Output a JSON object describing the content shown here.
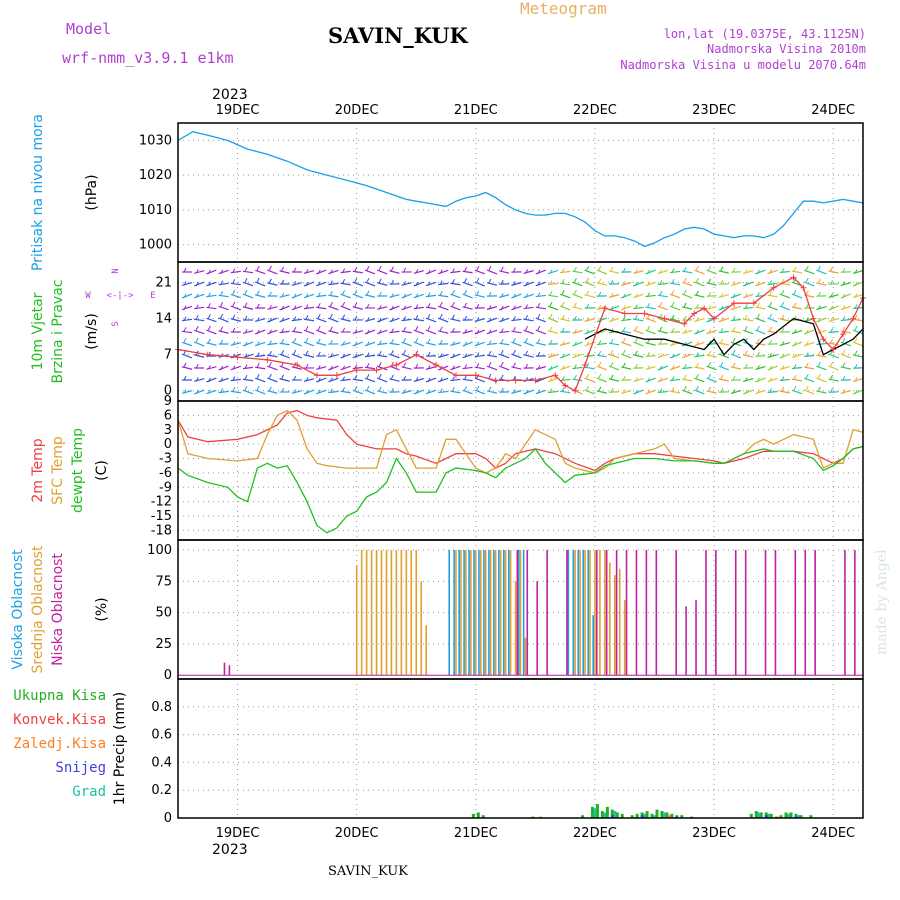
{
  "header": {
    "model_label": "Model",
    "model_name": "wrf-nmm_v3.9.1  e1km",
    "station": "SAVIN_KUK",
    "product": "Meteogram",
    "lonlat": "lon,lat (19.0375E, 43.1125N)",
    "altitude": "Nadmorska Visina 2010m",
    "model_altitude": "Nadmorska Visina u modelu 2070.64m",
    "year": "2023",
    "footer_station": "SAVIN_KUK",
    "watermark": "made by Angel"
  },
  "colors": {
    "pressure": "#1a9fe8",
    "temp2m": "#ef4040",
    "sfc_temp": "#e0a030",
    "dewpt": "#20c020",
    "high_cloud": "#20a0e0",
    "mid_cloud": "#e0a030",
    "low_cloud": "#c020a0",
    "total_precip": "#20b020",
    "convective": "#ef4040",
    "freezing": "#ff8020",
    "snow": "#4040e0",
    "hail": "#20c0a0",
    "purple_text": "#b040d0",
    "orange_text": "#e8b060"
  },
  "chart_data": [
    {
      "type": "line",
      "panel": "pressure",
      "ylabel_lines": [
        "Pritisak na nivou mora",
        "(hPa)"
      ],
      "yticks": [
        1000,
        1010,
        1020,
        1030
      ],
      "ylim": [
        995,
        1035
      ],
      "xlim": [
        0,
        138
      ],
      "xticks": [
        {
          "x": 12,
          "label": "19DEC"
        },
        {
          "x": 36,
          "label": "20DEC"
        },
        {
          "x": 60,
          "label": "21DEC"
        },
        {
          "x": 84,
          "label": "22DEC"
        },
        {
          "x": 108,
          "label": "23DEC"
        },
        {
          "x": 132,
          "label": "24DEC"
        }
      ],
      "series": [
        {
          "name": "",
          "color": "#1a9fe8",
          "x": [
            0,
            3,
            6,
            10,
            14,
            18,
            22,
            26,
            30,
            34,
            38,
            42,
            46,
            48,
            50,
            54,
            56,
            58,
            60,
            62,
            64,
            66,
            68,
            70,
            72,
            74,
            76,
            78,
            80,
            82,
            84,
            86,
            88,
            90,
            92,
            94,
            96,
            98,
            100,
            102,
            104,
            106,
            108,
            110,
            112,
            114,
            116,
            118,
            120,
            122,
            124,
            126,
            128,
            130,
            132,
            134,
            136,
            138
          ],
          "y": [
            1030,
            1032.5,
            1031.5,
            1030,
            1027.5,
            1026,
            1024,
            1021.5,
            1020,
            1018.5,
            1017,
            1015,
            1013,
            1012.5,
            1012,
            1011,
            1012.5,
            1013.5,
            1014,
            1015,
            1013.5,
            1011.5,
            1010,
            1009,
            1008.5,
            1008.5,
            1009,
            1009,
            1008,
            1006.5,
            1004,
            1002.5,
            1002.5,
            1002,
            1001,
            999.5,
            1000.5,
            1002,
            1003,
            1004.5,
            1005,
            1004.5,
            1003,
            1002.5,
            1002,
            1002.5,
            1002.5,
            1002,
            1003,
            1005.5,
            1009,
            1012.5,
            1012.5,
            1012,
            1012.5,
            1013,
            1012.5,
            1012
          ]
        }
      ]
    },
    {
      "type": "line",
      "panel": "wind",
      "ylabel_lines": [
        "10m Vjetar",
        "Brzina i Pravac",
        "(m/s)"
      ],
      "direction_labels": [
        "N",
        "E",
        "S",
        "W"
      ],
      "yticks": [
        0,
        7,
        14,
        21
      ],
      "ylim": [
        -2,
        25
      ],
      "xlim": [
        0,
        138
      ],
      "series": [
        {
          "name": "",
          "color": "#000000",
          "x": [
            82,
            86,
            90,
            94,
            98,
            102,
            106,
            108,
            110,
            112,
            114,
            116,
            118,
            120,
            124,
            128,
            130,
            132,
            134,
            136,
            138
          ],
          "y": [
            10,
            12,
            11,
            10,
            10,
            9,
            8,
            10,
            7,
            9,
            10,
            8,
            10,
            11,
            14,
            13,
            7,
            8,
            9,
            10,
            12
          ]
        },
        {
          "name": "",
          "color": "#ef4040",
          "x": [
            0,
            6,
            12,
            18,
            24,
            28,
            32,
            36,
            40,
            44,
            48,
            52,
            56,
            60,
            64,
            68,
            72,
            76,
            78,
            80,
            82,
            86,
            90,
            94,
            98,
            102,
            104,
            106,
            108,
            112,
            116,
            120,
            124,
            126,
            128,
            130,
            132,
            134,
            136,
            138
          ],
          "y": [
            8,
            7,
            6.5,
            6,
            5,
            3,
            3,
            4,
            4,
            5,
            7,
            5,
            3,
            3,
            2,
            2,
            2,
            3,
            1,
            0,
            5,
            16,
            15,
            15,
            14,
            13,
            15,
            16,
            14,
            17,
            17,
            20,
            22,
            20,
            14,
            10,
            8,
            11,
            14,
            18
          ]
        }
      ]
    },
    {
      "type": "line",
      "panel": "temperature",
      "ylabel_lines": [
        "2m Temp",
        "SFC Temp",
        "dewpt Temp",
        "(C)"
      ],
      "yticks": [
        -18,
        -15,
        -12,
        -9,
        -6,
        -3,
        0,
        3,
        6,
        9
      ],
      "ylim": [
        -20,
        9
      ],
      "xlim": [
        0,
        138
      ],
      "series": [
        {
          "name": "2m Temp",
          "color": "#ef4040",
          "x": [
            0,
            2,
            6,
            12,
            16,
            20,
            22,
            24,
            26,
            28,
            32,
            34,
            36,
            40,
            44,
            46,
            48,
            52,
            54,
            56,
            60,
            62,
            64,
            66,
            68,
            70,
            72,
            76,
            80,
            84,
            86,
            88,
            92,
            96,
            100,
            104,
            108,
            110,
            114,
            118,
            120,
            124,
            128,
            130,
            132,
            134,
            136,
            138
          ],
          "y": [
            5,
            1.5,
            0.5,
            1,
            2,
            4,
            6.5,
            7,
            6,
            5.5,
            5,
            2,
            0,
            -1,
            -1,
            -2,
            -2.5,
            -4,
            -3,
            -2,
            -2,
            -3,
            -5,
            -4,
            -2,
            -1.5,
            -1,
            -2,
            -4,
            -5.5,
            -4,
            -3,
            -2,
            -2,
            -2.5,
            -3,
            -3.5,
            -4,
            -3,
            -1.5,
            -1.5,
            -1.5,
            -2,
            -3,
            -4,
            -3,
            -1,
            -0.5
          ]
        },
        {
          "name": "SFC Temp",
          "color": "#e0a030",
          "x": [
            0,
            2,
            6,
            12,
            16,
            18,
            20,
            22,
            24,
            26,
            28,
            30,
            34,
            36,
            40,
            42,
            44,
            46,
            48,
            52,
            54,
            56,
            60,
            62,
            64,
            66,
            68,
            70,
            72,
            76,
            78,
            80,
            84,
            86,
            88,
            92,
            96,
            98,
            100,
            104,
            108,
            110,
            114,
            116,
            118,
            120,
            124,
            128,
            130,
            132,
            134,
            136,
            138
          ],
          "y": [
            5,
            -2,
            -3,
            -3.5,
            -3,
            2,
            6,
            7,
            5,
            -1,
            -4,
            -4.5,
            -5,
            -5,
            -5,
            2,
            3,
            -1,
            -5,
            -5,
            1,
            1,
            -5,
            -6,
            -5,
            -2,
            -3,
            0,
            3,
            1,
            -4,
            -5,
            -6,
            -5,
            -3,
            -2,
            -1,
            0,
            -3,
            -3.5,
            -4,
            -4,
            -2,
            0,
            1,
            0,
            2,
            1,
            -5,
            -4,
            -4,
            3,
            2.5
          ]
        },
        {
          "name": "dewpt Temp",
          "color": "#20c020",
          "x": [
            0,
            2,
            6,
            10,
            12,
            14,
            16,
            18,
            20,
            22,
            24,
            26,
            28,
            30,
            32,
            34,
            36,
            38,
            40,
            42,
            44,
            46,
            48,
            52,
            54,
            56,
            60,
            62,
            64,
            66,
            68,
            70,
            72,
            74,
            76,
            78,
            80,
            84,
            86,
            88,
            92,
            96,
            100,
            104,
            108,
            110,
            114,
            118,
            120,
            124,
            128,
            130,
            132,
            134,
            136,
            138
          ],
          "y": [
            -5,
            -6.5,
            -8,
            -9,
            -11,
            -12,
            -5,
            -4,
            -5,
            -4.5,
            -8,
            -12,
            -17,
            -18.5,
            -17.5,
            -15,
            -14,
            -11,
            -10,
            -8,
            -3,
            -6,
            -10,
            -10,
            -6,
            -5,
            -5.5,
            -6,
            -7,
            -5,
            -4,
            -3,
            -1,
            -4,
            -6,
            -8,
            -6.5,
            -6,
            -4.5,
            -4,
            -3,
            -3,
            -3.5,
            -3.5,
            -4,
            -4,
            -2,
            -1,
            -1.5,
            -1.5,
            -3,
            -5.5,
            -4.5,
            -3,
            -1,
            -0.5
          ]
        }
      ]
    },
    {
      "type": "bar",
      "panel": "clouds",
      "ylabel_lines": [
        "Visoka Oblacnost",
        "Srednja Oblacnost",
        "Niska Oblacnost",
        "(%)"
      ],
      "yticks": [
        0,
        25,
        50,
        75,
        100
      ],
      "ylim": [
        0,
        100
      ],
      "xlim": [
        0,
        138
      ],
      "series": [
        {
          "name": "Visoka Oblacnost",
          "color": "#20a0e0",
          "x": [
            55,
            56,
            57,
            58,
            59,
            60,
            61,
            62,
            63,
            64,
            65,
            66,
            67,
            69,
            70,
            79,
            80,
            81,
            82,
            83,
            84
          ],
          "y": [
            100,
            100,
            100,
            100,
            100,
            100,
            100,
            100,
            100,
            100,
            100,
            100,
            100,
            100,
            100,
            100,
            100,
            100,
            100,
            100,
            48
          ]
        },
        {
          "name": "Srednja Oblacnost",
          "color": "#e0a030",
          "x": [
            36,
            37,
            38,
            39,
            40,
            41,
            42,
            43,
            44,
            45,
            46,
            47,
            48,
            49,
            50,
            56,
            57,
            58,
            59,
            60,
            61,
            62,
            63,
            64,
            65,
            66,
            67,
            68,
            69,
            70,
            80,
            81,
            82,
            83,
            84,
            85,
            86,
            87,
            88,
            89,
            90
          ],
          "y": [
            88,
            100,
            100,
            100,
            100,
            100,
            100,
            100,
            100,
            100,
            100,
            100,
            100,
            75,
            40,
            100,
            100,
            100,
            100,
            100,
            100,
            100,
            100,
            100,
            100,
            100,
            100,
            75,
            100,
            30,
            100,
            100,
            100,
            100,
            100,
            100,
            100,
            90,
            80,
            85,
            60
          ]
        },
        {
          "name": "Niska Oblacnost",
          "color": "#c020a0",
          "x": [
            9,
            10,
            68,
            70,
            72,
            74,
            78,
            84,
            86,
            88,
            90,
            92,
            94,
            96,
            100,
            102,
            104,
            106,
            108,
            112,
            114,
            118,
            120,
            124,
            126,
            128,
            134,
            136
          ],
          "y": [
            10,
            8,
            100,
            100,
            75,
            100,
            100,
            100,
            100,
            100,
            100,
            100,
            100,
            100,
            100,
            55,
            60,
            100,
            100,
            100,
            100,
            100,
            100,
            100,
            100,
            100,
            100,
            100
          ]
        }
      ]
    },
    {
      "type": "bar",
      "panel": "precipitation",
      "ylabel_lines": [
        "1hr Precip (mm)"
      ],
      "legend": [
        "Ukupna Kisa",
        "Konvek.Kisa",
        "Zaledj.Kisa",
        "Snijeg",
        "Grad"
      ],
      "yticks": [
        0,
        0.2,
        0.4,
        0.6,
        0.8
      ],
      "ylim": [
        0,
        1.0
      ],
      "xlim": [
        0,
        138
      ],
      "series": [
        {
          "name": "Ukupna Kisa",
          "color": "#20b020",
          "x": [
            60,
            61,
            62,
            72,
            82,
            84,
            85,
            86,
            87,
            88,
            89,
            90,
            92,
            93,
            94,
            95,
            96,
            97,
            98,
            99,
            100,
            101,
            102,
            104,
            116,
            117,
            118,
            119,
            120,
            121,
            122,
            123,
            124,
            125,
            126,
            128
          ],
          "y": [
            0.03,
            0.04,
            0.02,
            0.01,
            0.02,
            0.08,
            0.1,
            0.05,
            0.08,
            0.06,
            0.04,
            0.03,
            0.02,
            0.03,
            0.04,
            0.05,
            0.03,
            0.06,
            0.05,
            0.04,
            0.03,
            0.02,
            0.02,
            0.01,
            0.03,
            0.05,
            0.04,
            0.04,
            0.03,
            0.01,
            0.02,
            0.04,
            0.04,
            0.03,
            0.02,
            0.02
          ]
        },
        {
          "name": "Grad",
          "color": "#20c0a0",
          "x": [
            84,
            86,
            88,
            94,
            96,
            98,
            117,
            119,
            123,
            125
          ],
          "y": [
            0.07,
            0.04,
            0.05,
            0.03,
            0.02,
            0.04,
            0.04,
            0.03,
            0.03,
            0.02
          ]
        },
        {
          "name": "Snijeg",
          "color": "#4040e0",
          "x": [
            87,
            93,
            100,
            118,
            124
          ],
          "y": [
            0.02,
            0.02,
            0.01,
            0.02,
            0.01
          ]
        },
        {
          "name": "Zaledj.Kisa",
          "color": "#ff8020",
          "x": [
            72,
            98,
            120
          ],
          "y": [
            0.01,
            0.02,
            0.01
          ]
        }
      ]
    }
  ]
}
